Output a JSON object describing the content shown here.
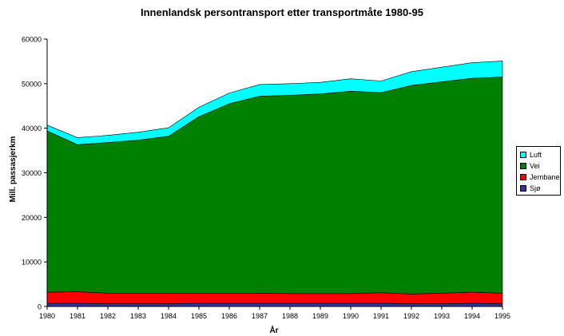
{
  "chart_data": {
    "type": "area",
    "stacked": true,
    "title": "Innenlandsk persontransport etter transportmåte 1980-95",
    "xlabel": "År",
    "ylabel": "Mill. passasjerkm",
    "ylim": [
      0,
      60000
    ],
    "yticks": [
      0,
      10000,
      20000,
      30000,
      40000,
      50000,
      60000
    ],
    "x": [
      1980,
      1981,
      1982,
      1983,
      1984,
      1985,
      1986,
      1987,
      1988,
      1989,
      1990,
      1991,
      1992,
      1993,
      1994,
      1995
    ],
    "legend_position": "right",
    "grid": false,
    "series": [
      {
        "name": "Sjø",
        "color": "#333399",
        "values": [
          700,
          700,
          600,
          600,
          600,
          700,
          700,
          700,
          700,
          700,
          700,
          700,
          600,
          600,
          700,
          600
        ]
      },
      {
        "name": "Jernbane",
        "color": "#ff0000",
        "values": [
          2500,
          2600,
          2400,
          2400,
          2400,
          2300,
          2300,
          2300,
          2200,
          2200,
          2200,
          2400,
          2200,
          2400,
          2500,
          2400
        ]
      },
      {
        "name": "Vei",
        "color": "#008000",
        "values": [
          36200,
          33000,
          33800,
          34300,
          35200,
          39600,
          42500,
          44200,
          44500,
          44800,
          45400,
          44900,
          46800,
          47400,
          48000,
          48500
        ]
      },
      {
        "name": "Luft",
        "color": "#00ffff",
        "values": [
          1300,
          1600,
          1600,
          1800,
          1900,
          2100,
          2400,
          2600,
          2600,
          2600,
          2800,
          2600,
          3100,
          3300,
          3500,
          3600
        ]
      }
    ]
  }
}
